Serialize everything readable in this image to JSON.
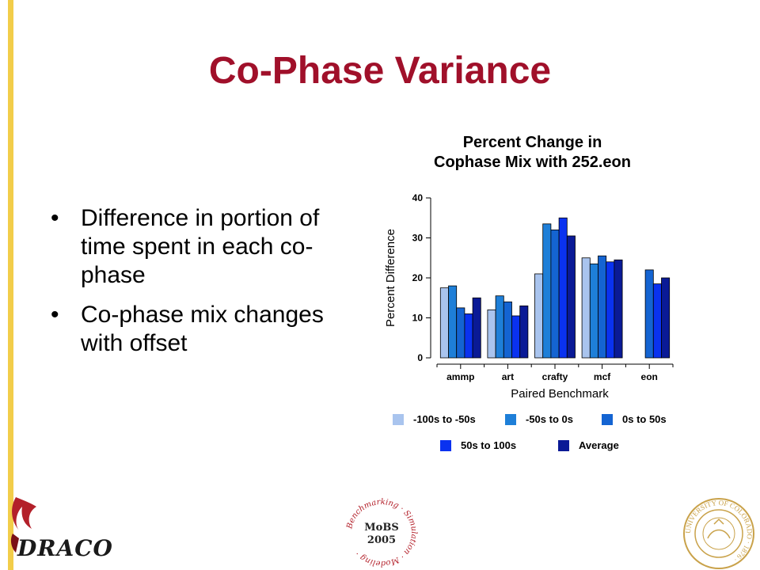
{
  "slide": {
    "title": "Co-Phase Variance",
    "bullets": [
      "Difference in portion of time spent in each co-phase",
      "Co-phase mix changes with offset"
    ]
  },
  "logos": {
    "draco": "DRACO",
    "mobs_line1": "MoBS",
    "mobs_line2": "2005",
    "mobs_ring": "Benchmarking · Simulation · Modeling ·",
    "cu_ring": "UNIVERSITY OF COLORADO · 1876 ·"
  },
  "chart_data": {
    "type": "bar",
    "title_line1": "Percent Change in",
    "title_line2": "Cophase Mix with 252.eon",
    "xlabel": "Paired Benchmark",
    "ylabel": "Percent Difference",
    "ylim": [
      0,
      40
    ],
    "yticks": [
      0,
      10,
      20,
      30,
      40
    ],
    "grid": false,
    "legend_position": "bottom",
    "categories": [
      "ammp",
      "art",
      "crafty",
      "mcf",
      "eon"
    ],
    "series": [
      {
        "name": "-100s to -50s",
        "color": "#a9c4ee",
        "values": [
          17.5,
          12,
          21,
          25,
          null
        ]
      },
      {
        "name": "-50s to 0s",
        "color": "#1e7fd8",
        "values": [
          18,
          15.5,
          33.5,
          23.5,
          null
        ]
      },
      {
        "name": "0s to 50s",
        "color": "#1464d2",
        "values": [
          12.5,
          14,
          32,
          25.5,
          22
        ]
      },
      {
        "name": "50s to 100s",
        "color": "#0a32f0",
        "values": [
          11,
          10.5,
          35,
          24,
          18.5
        ]
      },
      {
        "name": "Average",
        "color": "#0a1a96",
        "values": [
          15,
          13,
          30.5,
          24.5,
          20
        ]
      }
    ]
  }
}
